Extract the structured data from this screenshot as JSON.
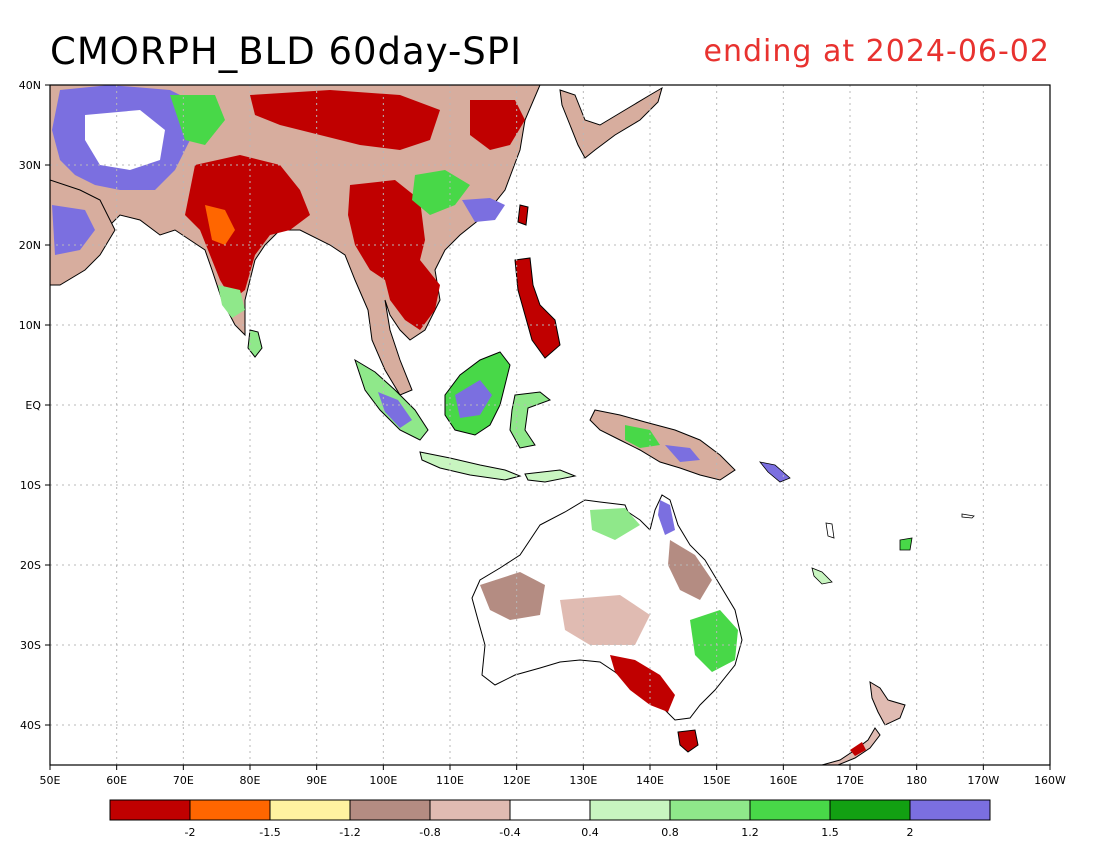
{
  "title": "CMORPH_BLD 60day-SPI",
  "subtitle": "ending at 2024-06-02",
  "colors": {
    "title": "#000000",
    "subtitle": "#e8322f",
    "coast": "#000000",
    "grid": "#b8b8b8"
  },
  "map": {
    "lon_range": [
      "50E",
      "160W"
    ],
    "lat_range": [
      "45S",
      "40N"
    ],
    "x_ticks": [
      "50E",
      "60E",
      "70E",
      "80E",
      "90E",
      "100E",
      "110E",
      "120E",
      "130E",
      "140E",
      "150E",
      "160E",
      "170E",
      "180",
      "170W",
      "160W"
    ],
    "y_ticks": [
      "40N",
      "30N",
      "20N",
      "10N",
      "EQ",
      "10S",
      "20S",
      "30S",
      "40S"
    ]
  },
  "legend": {
    "colors": [
      "#c00000",
      "#ff6600",
      "#fff3a0",
      "#b48c82",
      "#e0bbb2",
      "#ffffff",
      "#c8f5c0",
      "#8fe88a",
      "#48d848",
      "#12a012",
      "#7b6fe0"
    ],
    "labels": [
      "-2",
      "-1.5",
      "-1.2",
      "-0.8",
      "-0.4",
      "0.4",
      "0.8",
      "1.2",
      "1.5",
      "2"
    ]
  }
}
